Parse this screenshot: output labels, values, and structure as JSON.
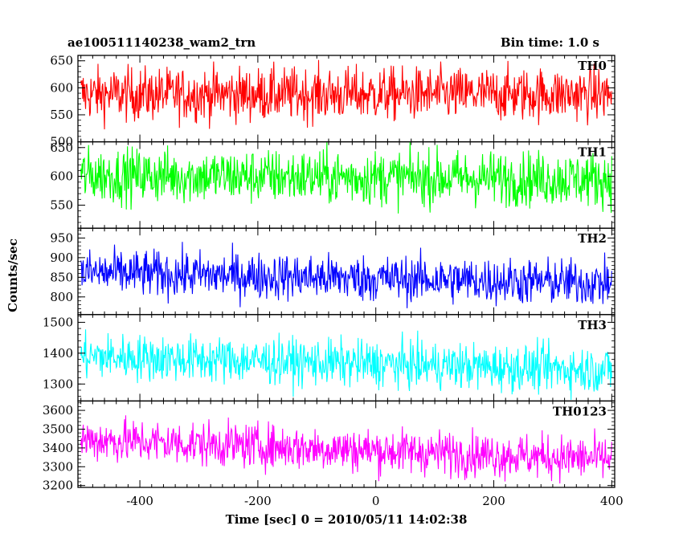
{
  "title": "ae100511140238_wam2_trn",
  "bin_time": "Bin time: 1.0 s",
  "chart_data": {
    "type": "line",
    "xlabel": "Time [sec] 0 = 2010/05/11 14:02:38",
    "ylabel": "Counts/sec",
    "xlim": [
      -505,
      405
    ],
    "xticks": [
      -400,
      -200,
      0,
      200,
      400
    ],
    "x_start": -500,
    "x_end": 400,
    "x_step": 1,
    "panels": [
      {
        "name": "TH0",
        "color": "#ff0000",
        "ylim": [
          500,
          660
        ],
        "yticks": [
          500,
          550,
          600,
          650
        ],
        "mean_start": 588,
        "mean_end": 588,
        "noise": 25
      },
      {
        "name": "TH1",
        "color": "#00ff00",
        "ylim": [
          510,
          660
        ],
        "yticks": [
          550,
          600,
          650
        ],
        "mean_start": 602,
        "mean_end": 595,
        "noise": 24
      },
      {
        "name": "TH2",
        "color": "#0000ff",
        "ylim": [
          755,
          975
        ],
        "yticks": [
          800,
          850,
          900,
          950
        ],
        "mean_start": 862,
        "mean_end": 835,
        "noise": 30
      },
      {
        "name": "TH3",
        "color": "#00ffff",
        "ylim": [
          1245,
          1525
        ],
        "yticks": [
          1300,
          1400,
          1500
        ],
        "mean_start": 1390,
        "mean_end": 1345,
        "noise": 38
      },
      {
        "name": "TH0123",
        "color": "#ff00ff",
        "ylim": [
          3190,
          3650
        ],
        "yticks": [
          3200,
          3300,
          3400,
          3500,
          3600
        ],
        "mean_start": 3445,
        "mean_end": 3340,
        "noise": 60
      }
    ]
  }
}
